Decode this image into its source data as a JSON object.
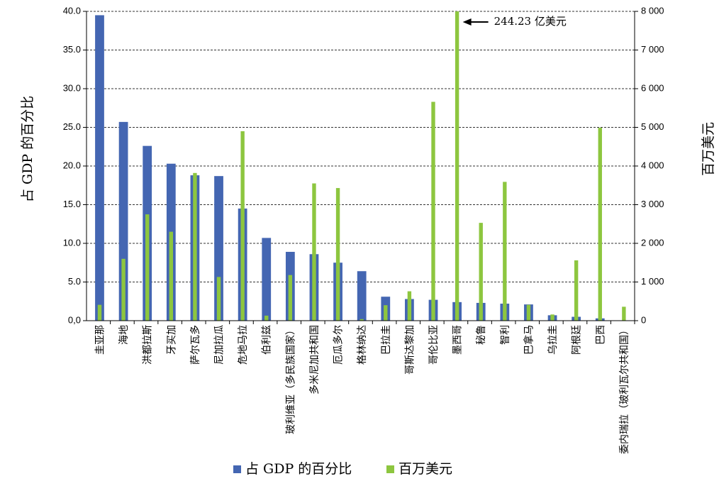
{
  "chart_data": {
    "type": "bar",
    "categories": [
      "圭亚那",
      "海地",
      "洪都拉斯",
      "牙买加",
      "萨尔瓦多",
      "尼加拉瓜",
      "危地马拉",
      "伯利兹",
      "玻利维亚（多民族国家）",
      "多米尼加共和国",
      "厄瓜多尔",
      "格林纳达",
      "巴拉圭",
      "哥斯达黎加",
      "哥伦比亚",
      "墨西哥",
      "秘鲁",
      "智利",
      "巴拿马",
      "乌拉圭",
      "阿根廷",
      "巴西",
      "委内瑞拉（玻利瓦尔共和国）"
    ],
    "series": [
      {
        "name": "占 GDP 的百分比",
        "axis": "left",
        "color": "#4466b2",
        "values": [
          39.5,
          25.7,
          22.6,
          20.3,
          18.8,
          18.7,
          14.5,
          10.7,
          8.9,
          8.6,
          7.5,
          6.4,
          3.1,
          2.8,
          2.7,
          2.4,
          2.3,
          2.2,
          2.1,
          0.7,
          0.5,
          0.3,
          0.0
        ]
      },
      {
        "name": "百万美元",
        "axis": "right",
        "color": "#8dc63f",
        "values": [
          410,
          1600,
          2750,
          2300,
          3820,
          1130,
          4900,
          130,
          1180,
          3550,
          3430,
          40,
          400,
          760,
          5660,
          8000,
          2530,
          3590,
          410,
          160,
          1560,
          4990,
          360
        ]
      }
    ],
    "ylabel_left": "占 GDP 的百分比",
    "ylabel_right": "百万美元",
    "ylim_left": [
      0,
      40
    ],
    "ylim_right": [
      0,
      8000
    ],
    "yticks_left": [
      "0,0",
      "5.0",
      "10.0",
      "15.0",
      "20.0",
      "25.0",
      "30.0",
      "35.0",
      "40.0"
    ],
    "yticks_right": [
      "0",
      "1 000",
      "2 000",
      "3 000",
      "4 000",
      "5 000",
      "6 000",
      "7 000",
      "8 000"
    ],
    "grid": true,
    "legend_position": "bottom",
    "annotation": {
      "text": "244.23 亿美元",
      "category": "墨西哥"
    }
  }
}
